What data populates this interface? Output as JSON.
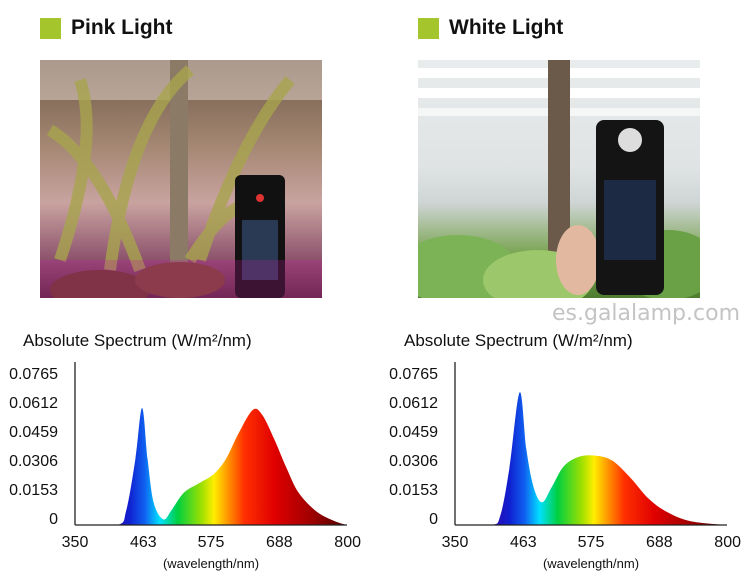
{
  "accent_color": "#a4c52c",
  "panels": [
    {
      "title": "Pink Light",
      "photo": "pink-grow-light-photo",
      "chart_title": "Absolute Spectrum (W/m²/nm)"
    },
    {
      "title": "White Light",
      "photo": "white-grow-light-photo",
      "chart_title": "Absolute Spectrum (W/m²/nm)"
    }
  ],
  "chart_data": [
    {
      "type": "area",
      "title": "Absolute Spectrum (W/m²/nm)",
      "xlabel": "(wavelength/nm)",
      "ylabel": "",
      "xticks": [
        "350",
        "463",
        "575",
        "688",
        "800"
      ],
      "yticks": [
        "0",
        "0.0153",
        "0.0306",
        "0.0459",
        "0.0612",
        "0.0765"
      ],
      "xlim": [
        350,
        800
      ],
      "ylim": [
        0,
        0.0765
      ],
      "grid": false,
      "fill": "visible-spectrum gradient",
      "x": [
        350,
        420,
        435,
        450,
        461,
        470,
        480,
        496,
        510,
        530,
        555,
        580,
        600,
        620,
        644,
        660,
        680,
        700,
        720,
        750,
        780,
        800
      ],
      "y": [
        0,
        0,
        0.008,
        0.035,
        0.0617,
        0.035,
        0.012,
        0.003,
        0.008,
        0.017,
        0.022,
        0.027,
        0.035,
        0.048,
        0.0607,
        0.058,
        0.045,
        0.03,
        0.017,
        0.007,
        0.002,
        0
      ]
    },
    {
      "type": "area",
      "title": "Absolute Spectrum (W/m²/nm)",
      "xlabel": "(wavelength/nm)",
      "ylabel": "",
      "xticks": [
        "350",
        "463",
        "575",
        "688",
        "800"
      ],
      "yticks": [
        "0",
        "0.0153",
        "0.0306",
        "0.0459",
        "0.0612",
        "0.0765"
      ],
      "xlim": [
        350,
        800
      ],
      "ylim": [
        0,
        0.0765
      ],
      "grid": false,
      "fill": "visible-spectrum gradient",
      "x": [
        350,
        410,
        425,
        440,
        457,
        468,
        480,
        494,
        510,
        530,
        555,
        582,
        610,
        640,
        670,
        700,
        740,
        800
      ],
      "y": [
        0,
        0,
        0.005,
        0.03,
        0.07,
        0.04,
        0.02,
        0.012,
        0.02,
        0.031,
        0.036,
        0.0366,
        0.034,
        0.025,
        0.014,
        0.007,
        0.002,
        0
      ]
    }
  ],
  "watermark": "es.galalamp.com"
}
